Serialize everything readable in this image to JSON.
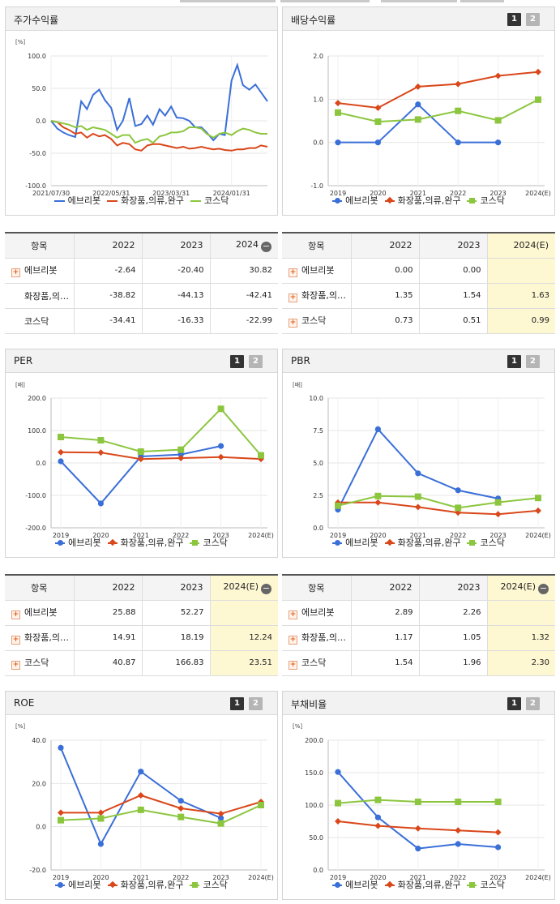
{
  "colors": {
    "ebri": "#3a6fd8",
    "cos": "#d9471a",
    "kosdaq": "#8cc63f"
  },
  "panels": [
    {
      "id": "price",
      "title": "주가수익률",
      "unit": "[%]",
      "has_page_buttons": false,
      "legend": [
        "에브리봇",
        "화장품,의류,완구",
        "코스닥"
      ],
      "table": {
        "header": [
          "항목",
          "2022",
          "2023",
          "2024"
        ],
        "header_minus": true,
        "rows": [
          {
            "label": "에브리봇",
            "plus": true,
            "values": [
              "-2.64",
              "-20.40",
              "30.82"
            ]
          },
          {
            "label": "화장품,의…",
            "plus": false,
            "values": [
              "-38.82",
              "-44.13",
              "-42.41"
            ]
          },
          {
            "label": "코스닥",
            "plus": false,
            "values": [
              "-34.41",
              "-16.33",
              "-22.99"
            ]
          }
        ]
      }
    },
    {
      "id": "dividend",
      "title": "배당수익률",
      "unit": "",
      "has_page_buttons": true,
      "legend": [
        "에브리봇",
        "화장품,의류,완구",
        "코스닥"
      ],
      "table": {
        "header": [
          "항목",
          "2022",
          "2023",
          "2024(E)"
        ],
        "header_minus": false,
        "rows": [
          {
            "label": "에브리봇",
            "plus": true,
            "values": [
              "0.00",
              "0.00",
              ""
            ]
          },
          {
            "label": "화장품,의…",
            "plus": true,
            "values": [
              "1.35",
              "1.54",
              "1.63"
            ]
          },
          {
            "label": "코스닥",
            "plus": true,
            "values": [
              "0.73",
              "0.51",
              "0.99"
            ]
          }
        ]
      }
    },
    {
      "id": "per",
      "title": "PER",
      "unit": "[배]",
      "has_page_buttons": true,
      "legend": [
        "에브리봇",
        "화장품,의류,완구",
        "코스닥"
      ],
      "table": {
        "header": [
          "항목",
          "2022",
          "2023",
          "2024(E)"
        ],
        "header_minus": true,
        "rows": [
          {
            "label": "에브리봇",
            "plus": true,
            "values": [
              "25.88",
              "52.27",
              ""
            ]
          },
          {
            "label": "화장품,의…",
            "plus": true,
            "values": [
              "14.91",
              "18.19",
              "12.24"
            ]
          },
          {
            "label": "코스닥",
            "plus": true,
            "values": [
              "40.87",
              "166.83",
              "23.51"
            ]
          }
        ]
      }
    },
    {
      "id": "pbr",
      "title": "PBR",
      "unit": "[배]",
      "has_page_buttons": true,
      "legend": [
        "에브리봇",
        "화장품,의류,완구",
        "코스닥"
      ],
      "table": {
        "header": [
          "항목",
          "2022",
          "2023",
          "2024(E)"
        ],
        "header_minus": true,
        "rows": [
          {
            "label": "에브리봇",
            "plus": true,
            "values": [
              "2.89",
              "2.26",
              ""
            ]
          },
          {
            "label": "화장품,의…",
            "plus": true,
            "values": [
              "1.17",
              "1.05",
              "1.32"
            ]
          },
          {
            "label": "코스닥",
            "plus": true,
            "values": [
              "1.54",
              "1.96",
              "2.30"
            ]
          }
        ]
      }
    },
    {
      "id": "roe",
      "title": "ROE",
      "unit": "[%]",
      "has_page_buttons": true,
      "legend": [
        "에브리봇",
        "화장품,의류,완구",
        "코스닥"
      ],
      "table": null
    },
    {
      "id": "debt",
      "title": "부채비율",
      "unit": "[%]",
      "has_page_buttons": true,
      "legend": [
        "에브리봇",
        "화장품,의류,완구",
        "코스닥"
      ],
      "table": null
    }
  ],
  "chart_data": [
    {
      "id": "price",
      "type": "line",
      "title": "주가수익률",
      "ylabel": "[%]",
      "ylim": [
        -100,
        100
      ],
      "yticks": [
        "100.0",
        "50.0",
        "0.0",
        "-50.0",
        "-100.0"
      ],
      "x_tick_labels": [
        "2021/07/30",
        "2022/05/31",
        "2023/03/31",
        "2024/01/31"
      ],
      "x_range": [
        "2021-07-30",
        "2024-07-31"
      ],
      "grid": true,
      "legend_position": "bottom",
      "series": [
        {
          "name": "에브리봇",
          "marker": "line",
          "color": "#3a6fd8",
          "x": [
            "2021-07-30",
            "2021-08-31",
            "2021-09-30",
            "2021-10-29",
            "2021-11-30",
            "2021-12-30",
            "2022-01-28",
            "2022-02-28",
            "2022-03-31",
            "2022-04-29",
            "2022-05-31",
            "2022-06-30",
            "2022-07-29",
            "2022-08-31",
            "2022-09-30",
            "2022-10-31",
            "2022-11-30",
            "2022-12-29",
            "2023-01-31",
            "2023-02-28",
            "2023-03-31",
            "2023-04-28",
            "2023-05-31",
            "2023-06-30",
            "2023-07-31",
            "2023-08-31",
            "2023-09-27",
            "2023-10-31",
            "2023-11-30",
            "2023-12-28",
            "2024-01-31",
            "2024-02-29",
            "2024-03-29",
            "2024-04-30",
            "2024-05-31",
            "2024-06-28",
            "2024-07-31"
          ],
          "y": [
            0,
            -12,
            -18,
            -22,
            -25,
            30,
            18,
            40,
            48,
            32,
            20,
            -14,
            0,
            35,
            -8,
            -5,
            8,
            -6,
            18,
            8,
            22,
            5,
            4,
            0,
            -10,
            -10,
            -18,
            -30,
            -20,
            -22,
            62,
            86,
            55,
            48,
            56,
            44,
            30
          ]
        },
        {
          "name": "화장품,의류,완구",
          "marker": "line",
          "color": "#d9471a",
          "x": [
            "2021-07-30",
            "2021-08-31",
            "2021-09-30",
            "2021-10-29",
            "2021-11-30",
            "2021-12-30",
            "2022-01-28",
            "2022-02-28",
            "2022-03-31",
            "2022-04-29",
            "2022-05-31",
            "2022-06-30",
            "2022-07-29",
            "2022-08-31",
            "2022-09-30",
            "2022-10-31",
            "2022-11-30",
            "2022-12-29",
            "2023-01-31",
            "2023-02-28",
            "2023-03-31",
            "2023-04-28",
            "2023-05-31",
            "2023-06-30",
            "2023-07-31",
            "2023-08-31",
            "2023-09-27",
            "2023-10-31",
            "2023-11-30",
            "2023-12-28",
            "2024-01-31",
            "2024-02-29",
            "2024-03-29",
            "2024-04-30",
            "2024-05-31",
            "2024-06-28",
            "2024-07-31"
          ],
          "y": [
            0,
            -2,
            -10,
            -14,
            -20,
            -18,
            -26,
            -20,
            -24,
            -22,
            -28,
            -38,
            -34,
            -36,
            -44,
            -46,
            -38,
            -36,
            -36,
            -38,
            -40,
            -42,
            -40,
            -43,
            -42,
            -40,
            -42,
            -44,
            -43,
            -45,
            -46,
            -44,
            -44,
            -42,
            -42,
            -38,
            -40
          ]
        },
        {
          "name": "코스닥",
          "marker": "line",
          "color": "#8cc63f",
          "x": [
            "2021-07-30",
            "2021-08-31",
            "2021-09-30",
            "2021-10-29",
            "2021-11-30",
            "2021-12-30",
            "2022-01-28",
            "2022-02-28",
            "2022-03-31",
            "2022-04-29",
            "2022-05-31",
            "2022-06-30",
            "2022-07-29",
            "2022-08-31",
            "2022-09-30",
            "2022-10-31",
            "2022-11-30",
            "2022-12-29",
            "2023-01-31",
            "2023-02-28",
            "2023-03-31",
            "2023-04-28",
            "2023-05-31",
            "2023-06-30",
            "2023-07-31",
            "2023-08-31",
            "2023-09-27",
            "2023-10-31",
            "2023-11-30",
            "2023-12-28",
            "2024-01-31",
            "2024-02-29",
            "2024-03-29",
            "2024-04-30",
            "2024-05-31",
            "2024-06-28",
            "2024-07-31"
          ],
          "y": [
            0,
            -2,
            -4,
            -6,
            -10,
            -8,
            -14,
            -10,
            -12,
            -14,
            -20,
            -26,
            -22,
            -22,
            -34,
            -30,
            -28,
            -34,
            -24,
            -22,
            -18,
            -18,
            -16,
            -10,
            -10,
            -12,
            -20,
            -26,
            -20,
            -18,
            -22,
            -16,
            -12,
            -14,
            -18,
            -20,
            -20
          ]
        }
      ]
    },
    {
      "id": "dividend",
      "type": "line",
      "title": "배당수익률",
      "ylim": [
        -1.0,
        2.0
      ],
      "yticks": [
        "2.0",
        "1.0",
        "0.0",
        "-1.0"
      ],
      "categories": [
        "2019",
        "2020",
        "2021",
        "2022",
        "2023",
        "2024(E)"
      ],
      "grid": true,
      "legend_position": "bottom",
      "series": [
        {
          "name": "에브리봇",
          "marker": "dot",
          "color": "#3a6fd8",
          "values": [
            0.0,
            0.0,
            0.88,
            0.0,
            0.0,
            null
          ]
        },
        {
          "name": "화장품,의류,완구",
          "marker": "diamond",
          "color": "#d9471a",
          "values": [
            0.91,
            0.8,
            1.29,
            1.35,
            1.54,
            1.63
          ]
        },
        {
          "name": "코스닥",
          "marker": "square",
          "color": "#8cc63f",
          "values": [
            0.69,
            0.48,
            0.53,
            0.73,
            0.51,
            0.99
          ]
        }
      ]
    },
    {
      "id": "per",
      "type": "line",
      "title": "PER",
      "ylabel": "[배]",
      "ylim": [
        -200,
        200
      ],
      "yticks": [
        "200.0",
        "100.0",
        "0.0",
        "-100.0",
        "-200.0"
      ],
      "categories": [
        "2019",
        "2020",
        "2021",
        "2022",
        "2023",
        "2024(E)"
      ],
      "grid": true,
      "legend_position": "bottom",
      "series": [
        {
          "name": "에브리봇",
          "marker": "dot",
          "color": "#3a6fd8",
          "values": [
            5,
            -125,
            20,
            25.88,
            52.27,
            null
          ]
        },
        {
          "name": "화장품,의류,완구",
          "marker": "diamond",
          "color": "#d9471a",
          "values": [
            33,
            32,
            12,
            14.91,
            18.19,
            12.24
          ]
        },
        {
          "name": "코스닥",
          "marker": "square",
          "color": "#8cc63f",
          "values": [
            80,
            70,
            35,
            40.87,
            166.83,
            23.51
          ]
        }
      ]
    },
    {
      "id": "pbr",
      "type": "line",
      "title": "PBR",
      "ylabel": "[배]",
      "ylim": [
        0,
        10
      ],
      "yticks": [
        "10.0",
        "7.5",
        "5.0",
        "2.5",
        "0.0"
      ],
      "categories": [
        "2019",
        "2020",
        "2021",
        "2022",
        "2023",
        "2024(E)"
      ],
      "grid": true,
      "legend_position": "bottom",
      "series": [
        {
          "name": "에브리봇",
          "marker": "dot",
          "color": "#3a6fd8",
          "values": [
            1.4,
            7.6,
            4.2,
            2.89,
            2.26,
            null
          ]
        },
        {
          "name": "화장품,의류,완구",
          "marker": "diamond",
          "color": "#d9471a",
          "values": [
            1.95,
            1.95,
            1.6,
            1.17,
            1.05,
            1.32
          ]
        },
        {
          "name": "코스닥",
          "marker": "square",
          "color": "#8cc63f",
          "values": [
            1.7,
            2.45,
            2.4,
            1.54,
            1.96,
            2.3
          ]
        }
      ]
    },
    {
      "id": "roe",
      "type": "line",
      "title": "ROE",
      "ylabel": "[%]",
      "ylim": [
        -20,
        40
      ],
      "yticks": [
        "40.0",
        "20.0",
        "0.0",
        "-20.0"
      ],
      "categories": [
        "2019",
        "2020",
        "2021",
        "2022",
        "2023",
        "2024(E)"
      ],
      "grid": true,
      "legend_position": "bottom",
      "series": [
        {
          "name": "에브리봇",
          "marker": "dot",
          "color": "#3a6fd8",
          "values": [
            36.5,
            -8.0,
            25.5,
            12.0,
            4.0,
            null
          ]
        },
        {
          "name": "화장품,의류,완구",
          "marker": "diamond",
          "color": "#d9471a",
          "values": [
            6.5,
            6.5,
            14.5,
            8.5,
            6.0,
            11.5
          ]
        },
        {
          "name": "코스닥",
          "marker": "square",
          "color": "#8cc63f",
          "values": [
            3.0,
            3.8,
            7.8,
            4.5,
            1.5,
            10.0
          ]
        }
      ]
    },
    {
      "id": "debt",
      "type": "line",
      "title": "부채비율",
      "ylabel": "[%]",
      "ylim": [
        0,
        200
      ],
      "yticks": [
        "200.0",
        "150.0",
        "100.0",
        "50.0",
        "0.0"
      ],
      "categories": [
        "2019",
        "2020",
        "2021",
        "2022",
        "2023",
        "2024(E)"
      ],
      "grid": true,
      "legend_position": "bottom",
      "series": [
        {
          "name": "에브리봇",
          "marker": "dot",
          "color": "#3a6fd8",
          "values": [
            151,
            81,
            33,
            40,
            35,
            null
          ]
        },
        {
          "name": "화장품,의류,완구",
          "marker": "diamond",
          "color": "#d9471a",
          "values": [
            75,
            68,
            64,
            61,
            58,
            null
          ]
        },
        {
          "name": "코스닥",
          "marker": "square",
          "color": "#8cc63f",
          "values": [
            103,
            108,
            105,
            105,
            105,
            null
          ]
        }
      ]
    }
  ]
}
